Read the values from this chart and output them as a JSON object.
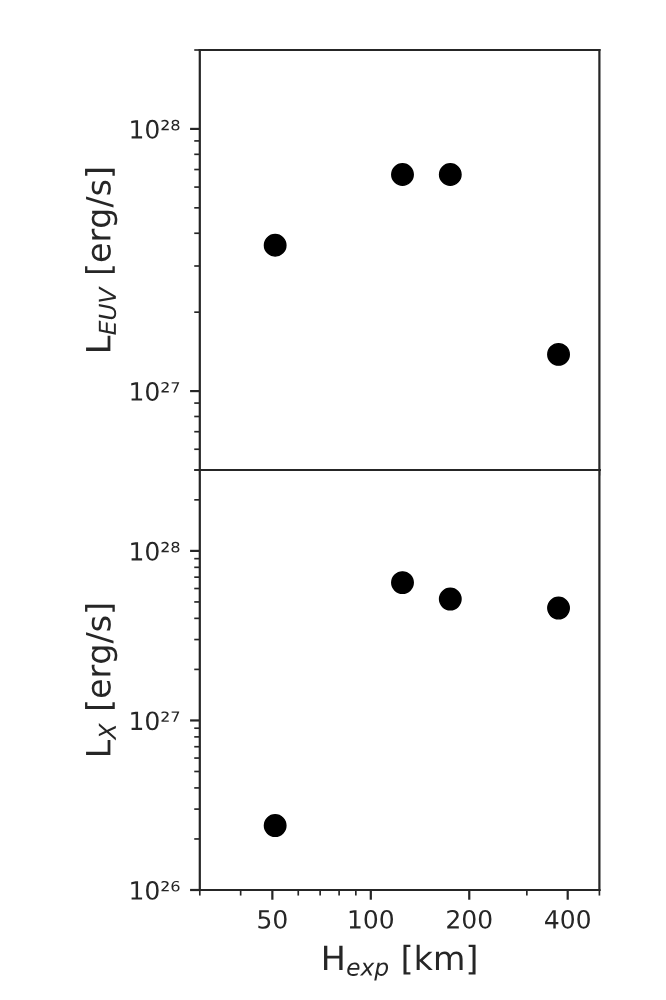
{
  "chart_data": [
    {
      "type": "scatter",
      "ylabel": "L$_{EUV}$ [erg/s]",
      "x": [
        51,
        125,
        175,
        375
      ],
      "values": [
        3.6e+27,
        6.7e+27,
        6.7e+27,
        1.38e+27
      ],
      "color": "#000000",
      "marker": "circle",
      "log": "xy",
      "xlim": [
        30,
        500
      ],
      "xticks": [
        50,
        100,
        200,
        400
      ],
      "ylim": [
        5e+26,
        2e+28
      ],
      "yticks": [
        {
          "value": 1e+27,
          "label": "10²⁷"
        },
        {
          "value": 1e+28,
          "label": "10²⁸"
        }
      ],
      "tick_labels": "y",
      "grid": false,
      "legend": false
    },
    {
      "type": "scatter",
      "xlabel": "H$_{exp}$ [km]",
      "ylabel": "L$_{X}$ [erg/s]",
      "x": [
        51,
        125,
        175,
        375
      ],
      "values": [
        2.4e+26,
        6.5e+27,
        5.2e+27,
        4.6e+27
      ],
      "color": "#000000",
      "marker": "circle",
      "log": "xy",
      "xlim": [
        30,
        500
      ],
      "xticks": [
        50,
        100,
        200,
        400
      ],
      "ylim": [
        1e+26,
        3e+28
      ],
      "yticks": [
        {
          "value": 1e+26,
          "label": "10²⁶"
        },
        {
          "value": 1e+27,
          "label": "10²⁷"
        },
        {
          "value": 1e+28,
          "label": "10²⁸"
        }
      ],
      "grid": false,
      "legend": false
    }
  ]
}
